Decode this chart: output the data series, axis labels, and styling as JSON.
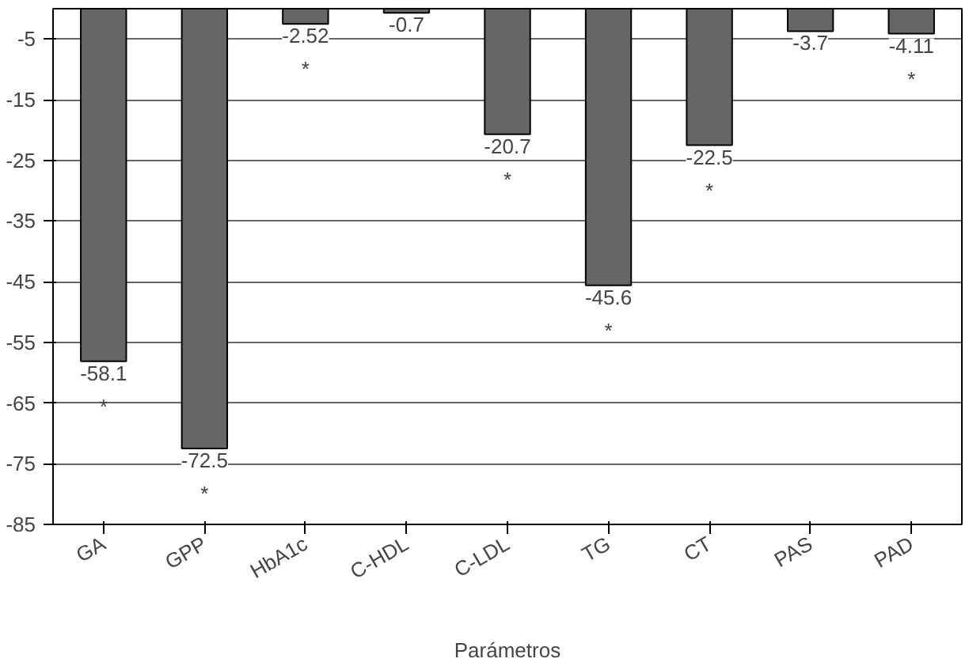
{
  "chart_data": {
    "type": "bar",
    "xlabel": "Parámetros",
    "categories": [
      "GA",
      "GPP",
      "HbA1c",
      "C-HDL",
      "C-LDL",
      "TG",
      "CT",
      "PAS",
      "PAD"
    ],
    "values": [
      -58.1,
      -72.5,
      -2.52,
      -0.7,
      -20.7,
      -45.6,
      -22.5,
      -3.7,
      -4.11
    ],
    "color": "#666666",
    "data_labels": true,
    "ylim": [
      -85,
      0
    ],
    "yticks": [
      -5,
      -15,
      -25,
      -35,
      -45,
      -55,
      -65,
      -75,
      -85
    ],
    "grid": "y",
    "annotations": [
      {
        "text": "*",
        "x": "GA",
        "y": -58.1
      },
      {
        "text": "*",
        "x": "GPP",
        "y": -72.5
      },
      {
        "text": "*",
        "x": "HbA1c",
        "y": -2.52
      },
      {
        "text": "*",
        "x": "C-LDL",
        "y": -20.7
      },
      {
        "text": "*",
        "x": "TG",
        "y": -45.6
      },
      {
        "text": "*",
        "x": "CT",
        "y": -22.5
      },
      {
        "text": "*",
        "x": "PAD",
        "y": -4.11
      }
    ]
  }
}
